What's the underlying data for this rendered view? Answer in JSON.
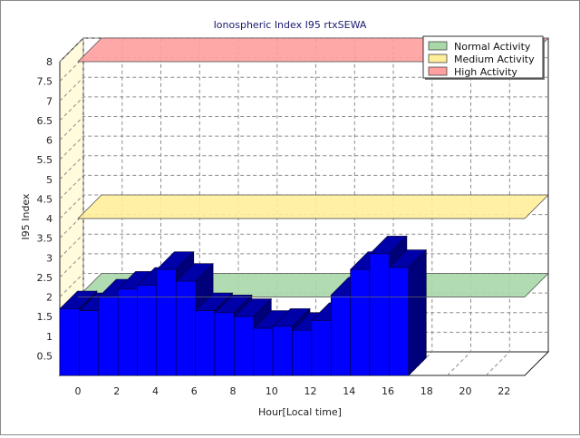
{
  "chart_data": {
    "type": "bar",
    "title": "Ionospheric Index I95 rtxSEWA",
    "xlabel": "Hour[Local time]",
    "ylabel": "I95 Index",
    "x_ticks": [
      "0",
      "2",
      "4",
      "6",
      "8",
      "10",
      "12",
      "14",
      "16",
      "18",
      "20",
      "22"
    ],
    "y_ticks": [
      "0.5",
      "1",
      "1.5",
      "2",
      "2.5",
      "3",
      "3.5",
      "4",
      "4.5",
      "5",
      "5.5",
      "6",
      "6.5",
      "7",
      "7.5",
      "8"
    ],
    "xlim": [
      0,
      24
    ],
    "ylim": [
      0,
      8
    ],
    "grid": true,
    "legend_position": "top-right",
    "hours": [
      0,
      1,
      2,
      3,
      4,
      5,
      6,
      7,
      8,
      9,
      10,
      11,
      12,
      13,
      14,
      15,
      16,
      17
    ],
    "values": [
      1.7,
      1.65,
      2.0,
      2.2,
      2.3,
      2.7,
      2.4,
      1.65,
      1.6,
      1.5,
      1.2,
      1.25,
      1.15,
      1.4,
      2.05,
      2.7,
      3.1,
      2.75
    ],
    "bar_color": "#0000ff",
    "bands": [
      {
        "label": "Normal Activity",
        "level": 2.0,
        "color": "#a8d8a8"
      },
      {
        "label": "Medium Activity",
        "level": 4.0,
        "color": "#ffee99"
      },
      {
        "label": "High Activity",
        "level": 8.0,
        "color": "#ff9f9f"
      }
    ]
  }
}
